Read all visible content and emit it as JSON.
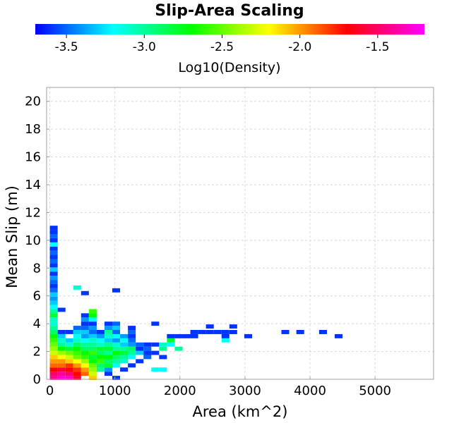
{
  "chart_data": {
    "type": "heatmap",
    "title": "Slip-Area Scaling",
    "xlabel": "Area (km^2)",
    "ylabel": "Mean Slip (m)",
    "xlim": [
      -50,
      5900
    ],
    "ylim": [
      0,
      21
    ],
    "xticks": [
      0,
      1000,
      2000,
      3000,
      4000,
      5000
    ],
    "yticks": [
      0,
      2,
      4,
      6,
      8,
      10,
      12,
      14,
      16,
      18,
      20
    ],
    "grid": true,
    "colorbar": {
      "label": "Log10(Density)",
      "range": [
        -3.7,
        -1.2
      ],
      "ticks": [
        -3.5,
        -3.0,
        -2.5,
        -2.0,
        -1.5
      ],
      "tick_labels": [
        "-3.5",
        "-3.0",
        "-2.5",
        "-2.0",
        "-1.5"
      ],
      "colors": [
        "#0000ff",
        "#00ffff",
        "#00ff00",
        "#ffff00",
        "#ff0000",
        "#ff00ff"
      ]
    },
    "cell_size": {
      "area_km2": 120,
      "slip_m": 0.3
    },
    "cells": [
      [
        0,
        0.1,
        -1.4
      ],
      [
        0,
        0.4,
        -1.5
      ],
      [
        0,
        0.7,
        -1.7
      ],
      [
        0,
        1.0,
        -1.9
      ],
      [
        0,
        1.3,
        -2.0
      ],
      [
        0,
        1.6,
        -2.1
      ],
      [
        0,
        1.9,
        -2.3
      ],
      [
        0,
        2.2,
        -2.4
      ],
      [
        0,
        2.5,
        -2.5
      ],
      [
        0,
        2.8,
        -2.6
      ],
      [
        0,
        3.1,
        -2.7
      ],
      [
        0,
        3.4,
        -2.9
      ],
      [
        0,
        3.7,
        -3.0
      ],
      [
        0,
        4.0,
        -3.1
      ],
      [
        0,
        4.3,
        -3.1
      ],
      [
        0,
        4.6,
        -2.8
      ],
      [
        0,
        4.9,
        -3.0
      ],
      [
        0,
        5.2,
        -3.2
      ],
      [
        0,
        5.5,
        -3.3
      ],
      [
        0,
        5.8,
        -3.4
      ],
      [
        0,
        6.1,
        -3.3
      ],
      [
        0,
        6.4,
        -3.5
      ],
      [
        0,
        6.7,
        -3.6
      ],
      [
        0,
        7.0,
        -3.5
      ],
      [
        0,
        7.3,
        -3.4
      ],
      [
        0,
        7.6,
        -3.6
      ],
      [
        0,
        7.9,
        -3.3
      ],
      [
        0,
        8.2,
        -3.6
      ],
      [
        0,
        8.5,
        -3.5
      ],
      [
        0,
        8.8,
        -3.6
      ],
      [
        0,
        9.1,
        -3.5
      ],
      [
        0,
        9.4,
        -3.6
      ],
      [
        0,
        9.7,
        -3.2
      ],
      [
        0,
        10.0,
        -3.6
      ],
      [
        0,
        10.3,
        -3.5
      ],
      [
        0,
        10.6,
        -3.6
      ],
      [
        0,
        10.9,
        -3.6
      ],
      [
        120,
        0.1,
        -1.3
      ],
      [
        120,
        0.4,
        -1.4
      ],
      [
        120,
        0.7,
        -1.6
      ],
      [
        120,
        1.0,
        -1.9
      ],
      [
        120,
        1.3,
        -2.0
      ],
      [
        120,
        1.6,
        -2.2
      ],
      [
        120,
        1.9,
        -2.4
      ],
      [
        120,
        2.2,
        -2.7
      ],
      [
        120,
        2.5,
        -3.0
      ],
      [
        120,
        2.8,
        -3.1
      ],
      [
        120,
        3.1,
        -3.3
      ],
      [
        120,
        3.4,
        -3.6
      ],
      [
        120,
        5.0,
        -3.6
      ],
      [
        240,
        0.1,
        -1.3
      ],
      [
        240,
        0.4,
        -1.5
      ],
      [
        240,
        0.7,
        -1.7
      ],
      [
        240,
        1.0,
        -1.8
      ],
      [
        240,
        1.3,
        -2.1
      ],
      [
        240,
        1.6,
        -2.3
      ],
      [
        240,
        1.9,
        -2.5
      ],
      [
        240,
        2.2,
        -2.8
      ],
      [
        240,
        2.5,
        -3.1
      ],
      [
        240,
        2.8,
        -3.3
      ],
      [
        240,
        3.4,
        -3.6
      ],
      [
        360,
        0.1,
        -1.6
      ],
      [
        360,
        0.4,
        -1.7
      ],
      [
        360,
        0.7,
        -1.8
      ],
      [
        360,
        1.0,
        -2.0
      ],
      [
        360,
        1.3,
        -2.2
      ],
      [
        360,
        1.6,
        -2.5
      ],
      [
        360,
        1.9,
        -2.6
      ],
      [
        360,
        2.2,
        -2.7
      ],
      [
        360,
        2.5,
        -2.9
      ],
      [
        360,
        2.8,
        -3.1
      ],
      [
        360,
        3.1,
        -3.2
      ],
      [
        360,
        3.4,
        -3.3
      ],
      [
        360,
        3.7,
        -3.5
      ],
      [
        360,
        6.6,
        -3.1
      ],
      [
        480,
        0.4,
        -1.9
      ],
      [
        480,
        0.7,
        -2.0
      ],
      [
        480,
        1.0,
        -2.2
      ],
      [
        480,
        1.3,
        -2.4
      ],
      [
        480,
        1.6,
        -2.6
      ],
      [
        480,
        1.9,
        -2.7
      ],
      [
        480,
        2.2,
        -2.9
      ],
      [
        480,
        2.5,
        -3.0
      ],
      [
        480,
        2.8,
        -3.2
      ],
      [
        480,
        3.1,
        -3.4
      ],
      [
        480,
        3.4,
        -3.3
      ],
      [
        480,
        3.7,
        -3.5
      ],
      [
        480,
        4.0,
        -3.6
      ],
      [
        480,
        4.3,
        -3.4
      ],
      [
        480,
        4.6,
        -3.6
      ],
      [
        480,
        6.2,
        -3.6
      ],
      [
        600,
        0.1,
        -2.1
      ],
      [
        600,
        0.4,
        -2.3
      ],
      [
        600,
        0.7,
        -2.4
      ],
      [
        600,
        1.0,
        -2.5
      ],
      [
        600,
        1.3,
        -2.7
      ],
      [
        600,
        1.6,
        -2.8
      ],
      [
        600,
        1.9,
        -2.6
      ],
      [
        600,
        2.2,
        -2.9
      ],
      [
        600,
        2.5,
        -3.0
      ],
      [
        600,
        2.8,
        -3.1
      ],
      [
        600,
        3.1,
        -3.3
      ],
      [
        600,
        3.4,
        -3.5
      ],
      [
        600,
        3.7,
        -3.4
      ],
      [
        600,
        4.0,
        -3.6
      ],
      [
        600,
        4.3,
        -3.2
      ],
      [
        600,
        4.6,
        -2.7
      ],
      [
        600,
        4.9,
        -2.6
      ],
      [
        720,
        0.7,
        -3.0
      ],
      [
        720,
        1.0,
        -2.9
      ],
      [
        720,
        1.3,
        -2.6
      ],
      [
        720,
        1.6,
        -2.7
      ],
      [
        720,
        1.9,
        -2.9
      ],
      [
        720,
        2.2,
        -2.8
      ],
      [
        720,
        2.5,
        -3.1
      ],
      [
        720,
        2.8,
        -3.2
      ],
      [
        720,
        3.1,
        -3.4
      ],
      [
        720,
        3.4,
        -3.6
      ],
      [
        840,
        0.4,
        -3.6
      ],
      [
        840,
        0.7,
        -3.4
      ],
      [
        840,
        1.0,
        -2.8
      ],
      [
        840,
        1.3,
        -2.9
      ],
      [
        840,
        1.6,
        -2.7
      ],
      [
        840,
        1.9,
        -3.0
      ],
      [
        840,
        2.2,
        -2.8
      ],
      [
        840,
        2.5,
        -3.0
      ],
      [
        840,
        2.8,
        -3.3
      ],
      [
        840,
        3.1,
        -3.1
      ],
      [
        840,
        3.4,
        -3.0
      ],
      [
        840,
        3.7,
        -3.4
      ],
      [
        840,
        4.0,
        -3.6
      ],
      [
        960,
        1.0,
        -3.2
      ],
      [
        960,
        1.3,
        -3.0
      ],
      [
        960,
        1.6,
        -2.9
      ],
      [
        960,
        1.9,
        -2.7
      ],
      [
        960,
        2.2,
        -3.0
      ],
      [
        960,
        2.5,
        -3.1
      ],
      [
        960,
        2.8,
        -3.4
      ],
      [
        960,
        3.1,
        -3.2
      ],
      [
        960,
        3.4,
        -3.5
      ],
      [
        960,
        3.7,
        -3.3
      ],
      [
        960,
        4.0,
        -3.5
      ],
      [
        960,
        6.4,
        -3.6
      ],
      [
        960,
        0.1,
        -3.6
      ],
      [
        1080,
        0.7,
        -3.6
      ],
      [
        1080,
        1.3,
        -3.1
      ],
      [
        1080,
        1.6,
        -3.0
      ],
      [
        1080,
        1.9,
        -2.8
      ],
      [
        1080,
        2.2,
        -3.0
      ],
      [
        1080,
        2.5,
        -3.3
      ],
      [
        1080,
        2.8,
        -3.2
      ],
      [
        1080,
        3.1,
        -3.4
      ],
      [
        1200,
        1.0,
        -3.6
      ],
      [
        1200,
        1.6,
        -3.2
      ],
      [
        1200,
        1.9,
        -3.0
      ],
      [
        1200,
        2.2,
        -2.9
      ],
      [
        1200,
        2.5,
        -3.4
      ],
      [
        1200,
        2.8,
        -3.5
      ],
      [
        1200,
        3.1,
        -3.6
      ],
      [
        1200,
        3.4,
        -3.5
      ],
      [
        1200,
        3.7,
        -3.6
      ],
      [
        1320,
        1.3,
        -3.6
      ],
      [
        1320,
        1.9,
        -3.3
      ],
      [
        1320,
        2.2,
        -3.6
      ],
      [
        1320,
        2.5,
        -3.5
      ],
      [
        1440,
        1.6,
        -3.5
      ],
      [
        1440,
        1.9,
        -3.6
      ],
      [
        1440,
        2.2,
        -3.5
      ],
      [
        1440,
        2.5,
        -3.6
      ],
      [
        1560,
        0.7,
        -3.2
      ],
      [
        1560,
        1.9,
        -3.6
      ],
      [
        1560,
        2.5,
        -3.6
      ],
      [
        1560,
        4.0,
        -3.6
      ],
      [
        1680,
        0.7,
        -3.2
      ],
      [
        1680,
        1.6,
        -3.6
      ],
      [
        1680,
        2.2,
        -3.0
      ],
      [
        1680,
        2.5,
        -3.1
      ],
      [
        1800,
        2.5,
        -3.2
      ],
      [
        1800,
        2.8,
        -2.8
      ],
      [
        1800,
        3.1,
        -3.6
      ],
      [
        1920,
        2.2,
        -3.0
      ],
      [
        1920,
        3.1,
        -3.6
      ],
      [
        2040,
        3.1,
        -3.6
      ],
      [
        2160,
        3.1,
        -3.6
      ],
      [
        2160,
        3.4,
        -3.6
      ],
      [
        2280,
        3.4,
        -3.6
      ],
      [
        2400,
        3.4,
        -3.6
      ],
      [
        2400,
        3.8,
        -3.6
      ],
      [
        2520,
        3.4,
        -3.6
      ],
      [
        2640,
        2.8,
        -3.2
      ],
      [
        2640,
        3.1,
        -3.6
      ],
      [
        2640,
        3.4,
        -3.6
      ],
      [
        2760,
        3.4,
        -3.6
      ],
      [
        2760,
        3.8,
        -3.6
      ],
      [
        2990,
        3.1,
        -3.6
      ],
      [
        3560,
        3.4,
        -3.6
      ],
      [
        3790,
        3.4,
        -3.6
      ],
      [
        4140,
        3.4,
        -3.6
      ],
      [
        4380,
        3.1,
        -3.6
      ]
    ]
  }
}
